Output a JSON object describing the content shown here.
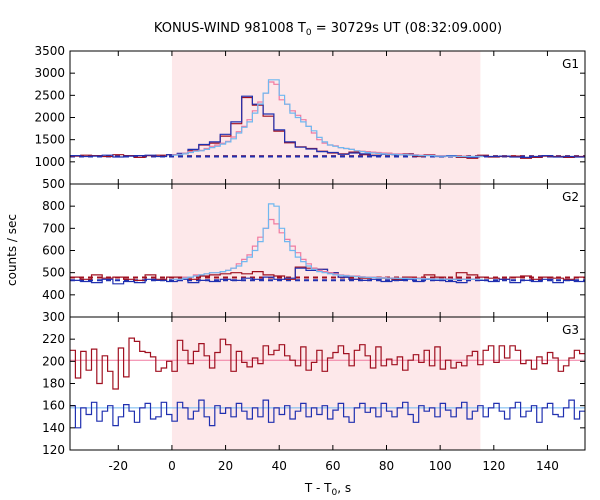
{
  "chart_data": {
    "type": "line",
    "title_main": "KONUS-WIND 981008 T",
    "title_sub": "0",
    "title_rest": " = 30729s UT (08:32:09.000)",
    "xlabel_main": "T - T",
    "xlabel_sub": "0",
    "xlabel_rest": ", s",
    "ylabel": "counts / sec",
    "xlim": [
      -38,
      154
    ],
    "xticks": [
      -20,
      0,
      20,
      40,
      60,
      80,
      100,
      120,
      140
    ],
    "shaded_interval": [
      0,
      115
    ],
    "colors": {
      "shade": "#fde8ea",
      "red": "#a01020",
      "pink": "#f07aa0",
      "blue": "#2030b0",
      "lightblue": "#70b8f0"
    },
    "panels": [
      {
        "label": "G1",
        "ylim": [
          500,
          3500
        ],
        "yticks": [
          500,
          1000,
          1500,
          2000,
          2500,
          3000,
          3500
        ],
        "background_levels": [
          {
            "color": "red",
            "value": 1130,
            "dashed": true
          },
          {
            "color": "blue",
            "value": 1120,
            "dashed": true
          }
        ],
        "series": [
          {
            "color": "red",
            "bin_width": 4,
            "x_start": -38,
            "values": [
              1130,
              1150,
              1140,
              1120,
              1160,
              1140,
              1100,
              1140,
              1150,
              1160,
              1180,
              1260,
              1380,
              1420,
              1580,
              1860,
              2450,
              2280,
              2030,
              1690,
              1430,
              1340,
              1300,
              1240,
              1200,
              1180,
              1220,
              1160,
              1150,
              1190,
              1170,
              1180,
              1120,
              1160,
              1130,
              1130,
              1100,
              1080,
              1150,
              1110,
              1120,
              1130,
              1080,
              1100,
              1130,
              1120,
              1100,
              1120
            ]
          },
          {
            "color": "blue",
            "bin_width": 4,
            "x_start": -38,
            "values": [
              1140,
              1120,
              1130,
              1150,
              1110,
              1130,
              1140,
              1150,
              1120,
              1160,
              1190,
              1280,
              1390,
              1450,
              1620,
              1900,
              2480,
              2300,
              2080,
              1720,
              1450,
              1330,
              1290,
              1230,
              1210,
              1170,
              1200,
              1180,
              1140,
              1170,
              1160,
              1170,
              1140,
              1150,
              1120,
              1140,
              1120,
              1100,
              1130,
              1120,
              1130,
              1110,
              1100,
              1120,
              1140,
              1110,
              1120,
              1110
            ]
          },
          {
            "color": "pink",
            "bin_width": 2,
            "x_start": 0,
            "values": [
              1160,
              1170,
              1190,
              1230,
              1250,
              1260,
              1300,
              1350,
              1380,
              1420,
              1460,
              1560,
              1680,
              1800,
              1950,
              2150,
              2350,
              2550,
              2800,
              2750,
              2400,
              2300,
              2150,
              2050,
              1950,
              1800,
              1650,
              1500,
              1420,
              1380,
              1360,
              1320,
              1300,
              1280,
              1250,
              1240,
              1230,
              1220,
              1210,
              1200,
              1190,
              1180,
              1180,
              1170,
              1160,
              1160,
              1150,
              1150,
              1150,
              1140,
              1140,
              1130,
              1130,
              1130,
              1130,
              1120,
              1120,
              1120
            ]
          },
          {
            "color": "lightblue",
            "bin_width": 2,
            "x_start": 0,
            "values": [
              1150,
              1160,
              1180,
              1210,
              1240,
              1250,
              1280,
              1320,
              1350,
              1400,
              1450,
              1520,
              1650,
              1780,
              1900,
              2100,
              2300,
              2550,
              2850,
              2850,
              2500,
              2300,
              2100,
              2000,
              1900,
              1800,
              1700,
              1550,
              1450,
              1380,
              1350,
              1320,
              1300,
              1280,
              1250,
              1230,
              1210,
              1200,
              1190,
              1180,
              1170,
              1170,
              1160,
              1160,
              1150,
              1150,
              1140,
              1140,
              1140,
              1130,
              1130,
              1130,
              1130,
              1120,
              1120,
              1120,
              1120,
              1120
            ]
          }
        ]
      },
      {
        "label": "G2",
        "ylim": [
          300,
          900
        ],
        "yticks": [
          300,
          400,
          500,
          600,
          700,
          800
        ],
        "background_levels": [
          {
            "color": "red",
            "value": 478,
            "dashed": true
          },
          {
            "color": "blue",
            "value": 466,
            "dashed": true
          }
        ],
        "series": [
          {
            "color": "red",
            "bin_width": 4,
            "x_start": -38,
            "values": [
              480,
              470,
              490,
              475,
              480,
              470,
              465,
              490,
              470,
              480,
              480,
              470,
              485,
              490,
              495,
              500,
              495,
              505,
              490,
              485,
              470,
              525,
              520,
              515,
              500,
              480,
              470,
              475,
              480,
              475,
              470,
              480,
              475,
              490,
              480,
              470,
              500,
              490,
              480,
              475,
              470,
              480,
              485,
              470,
              480,
              475,
              470,
              480
            ]
          },
          {
            "color": "blue",
            "bin_width": 4,
            "x_start": -38,
            "values": [
              465,
              460,
              455,
              470,
              450,
              460,
              455,
              470,
              465,
              460,
              470,
              455,
              465,
              460,
              470,
              465,
              475,
              470,
              480,
              470,
              475,
              520,
              510,
              515,
              500,
              480,
              470,
              465,
              470,
              460,
              465,
              470,
              460,
              470,
              465,
              460,
              455,
              470,
              465,
              460,
              470,
              455,
              465,
              460,
              470,
              455,
              465,
              460
            ]
          },
          {
            "color": "pink",
            "bin_width": 2,
            "x_start": 0,
            "values": [
              470,
              470,
              480,
              480,
              490,
              490,
              495,
              500,
              500,
              505,
              510,
              520,
              540,
              560,
              580,
              620,
              660,
              700,
              740,
              720,
              680,
              650,
              620,
              590,
              560,
              540,
              520,
              510,
              505,
              500,
              495,
              490,
              488,
              485,
              485,
              482,
              480,
              480,
              478,
              478,
              476,
              476,
              475,
              475,
              474,
              474,
              474,
              473,
              473,
              472,
              472,
              472,
              471,
              471,
              471,
              470,
              470,
              470
            ]
          },
          {
            "color": "lightblue",
            "bin_width": 2,
            "x_start": 0,
            "values": [
              470,
              470,
              475,
              480,
              485,
              490,
              495,
              500,
              500,
              505,
              510,
              520,
              530,
              550,
              570,
              600,
              640,
              700,
              810,
              800,
              700,
              640,
              600,
              570,
              550,
              530,
              515,
              505,
              500,
              495,
              490,
              488,
              486,
              484,
              482,
              480,
              479,
              478,
              477,
              476,
              475,
              475,
              474,
              474,
              473,
              473,
              472,
              472,
              471,
              471,
              471,
              470,
              470,
              470,
              470,
              470,
              470,
              470
            ]
          }
        ]
      },
      {
        "label": "G3",
        "ylim": [
          120,
          240
        ],
        "yticks": [
          120,
          140,
          160,
          180,
          200,
          220
        ],
        "background_levels": [
          {
            "color": "pink",
            "value": 201,
            "dashed": false
          },
          {
            "color": "lightblue",
            "value": 158,
            "dashed": false
          }
        ],
        "series": [
          {
            "color": "red",
            "bin_width": 2,
            "x_start": -38,
            "values": [
              210,
              185,
              209,
              192,
              211,
              180,
              205,
              191,
              175,
              212,
              186,
              221,
              218,
              209,
              208,
              204,
              191,
              194,
              200,
              191,
              219,
              210,
              198,
              209,
              216,
              205,
              194,
              208,
              220,
              215,
              191,
              209,
              199,
              195,
              203,
              198,
              214,
              206,
              210,
              215,
              205,
              201,
              196,
              213,
              192,
              199,
              210,
              191,
              203,
              208,
              214,
              207,
              196,
              210,
              215,
              205,
              194,
              213,
              196,
              202,
              197,
              204,
              192,
              201,
              206,
              199,
              210,
              196,
              213,
              193,
              201,
              194,
              199,
              196,
              205,
              209,
              197,
              210,
              214,
              199,
              214,
              203,
              214,
              210,
              198,
              201,
              193,
              204,
              198,
              208,
              203,
              191,
              196,
              203,
              210,
              207,
              193,
              210,
              192,
              204,
              199,
              197,
              209,
              202,
              197,
              194,
              205,
              198,
              202,
              197,
              206,
              203,
              210,
              207,
              212,
              211,
              213,
              209,
              202,
              212,
              202,
              198,
              210,
              202,
              213,
              191,
              213,
              204,
              195,
              202,
              199,
              208,
              194,
              212,
              199,
              195,
              207,
              200,
              196,
              204,
              200,
              213,
              198,
              208,
              194,
              202,
              208,
              196,
              191,
              195,
              207,
              202,
              196,
              193,
              200,
              202,
              201,
              196,
              201,
              195,
              211,
              204,
              203,
              198,
              199,
              196,
              204,
              210,
              193,
              208,
              213,
              197,
              206,
              194,
              205,
              203,
              195,
              200,
              209,
              211,
              205,
              196,
              208,
              200,
              198,
              205,
              201,
              200,
              196,
              207,
              201,
              195,
              193,
              196
            ]
          },
          {
            "color": "blue",
            "bin_width": 2,
            "x_start": -38,
            "values": [
              160,
              140,
              158,
              152,
              163,
              146,
              155,
              160,
              142,
              150,
              161,
              155,
              145,
              158,
              162,
              148,
              150,
              163,
              152,
              146,
              163,
              158,
              148,
              155,
              165,
              150,
              142,
              160,
              153,
              158,
              150,
              162,
              155,
              148,
              158,
              150,
              165,
              145,
              158,
              152,
              160,
              148,
              155,
              162,
              150,
              158,
              152,
              160,
              148,
              156,
              162,
              150,
              145,
              158,
              162,
              154,
              158,
              150,
              162,
              155,
              150,
              158,
              163,
              152,
              145,
              160,
              155,
              158,
              150,
              162,
              156,
              150,
              158,
              163,
              148,
              155,
              160,
              150,
              158,
              162,
              155,
              148,
              158,
              163,
              150,
              155,
              160,
              145,
              158,
              162,
              152,
              150,
              158,
              165,
              148,
              155,
              160,
              152,
              158,
              150,
              162,
              155,
              148,
              160,
              153,
              158,
              150,
              162,
              155,
              148,
              158,
              163,
              152,
              155,
              160,
              150,
              158,
              162,
              148,
              155,
              160,
              152,
              158,
              150,
              163,
              155,
              148,
              158,
              162,
              150,
              155,
              160,
              152,
              158,
              163,
              148,
              155,
              160,
              150,
              158,
              162,
              155,
              148,
              160,
              155,
              158,
              150,
              162,
              155,
              148,
              158,
              160,
              152,
              155,
              160,
              150,
              158,
              162,
              148,
              155,
              160,
              152,
              158,
              150,
              163,
              155,
              148,
              158,
              162,
              150,
              155,
              160,
              152,
              158,
              163,
              148,
              155,
              160,
              150,
              158,
              162,
              155,
              148,
              160,
              155,
              158,
              150,
              162,
              155,
              148,
              158,
              160,
              152,
              155
            ]
          }
        ]
      }
    ]
  }
}
